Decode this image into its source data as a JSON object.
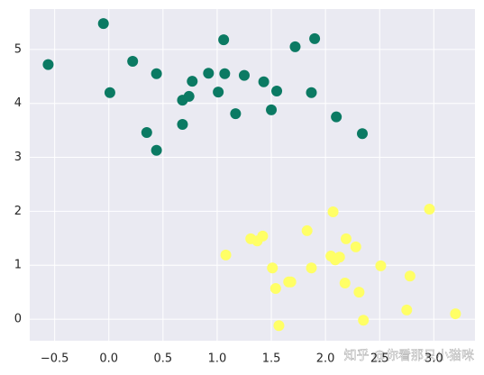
{
  "chart_data": {
    "type": "scatter",
    "xlim": [
      -0.73,
      3.38
    ],
    "ylim": [
      -0.4,
      5.75
    ],
    "xticks": [
      {
        "value": -0.5,
        "label": "−0.5"
      },
      {
        "value": 0,
        "label": "0.0"
      },
      0.5,
      {
        "value": 1,
        "label": "1.0"
      },
      1.5,
      {
        "value": 2,
        "label": "2.0"
      },
      2.5,
      {
        "value": 3,
        "label": "3.0"
      }
    ],
    "yticks": [
      0,
      1,
      2,
      3,
      4,
      5
    ],
    "grid": true,
    "background": "#eaeaf2",
    "series": [
      {
        "color": "#0b7a63",
        "x": [
          -0.56,
          -0.05,
          0.01,
          0.22,
          0.44,
          0.35,
          0.44,
          0.68,
          0.68,
          0.74,
          0.77,
          0.92,
          1.01,
          1.06,
          1.07,
          1.17,
          1.25,
          1.43,
          1.5,
          1.55,
          1.72,
          1.9,
          1.87,
          2.1,
          2.34
        ],
        "values": [
          4.72,
          5.48,
          4.2,
          4.78,
          4.55,
          3.46,
          3.13,
          3.61,
          4.06,
          4.13,
          4.41,
          4.56,
          4.21,
          5.18,
          4.55,
          3.81,
          4.52,
          4.4,
          3.88,
          4.23,
          5.05,
          5.2,
          4.2,
          3.75,
          3.44
        ]
      },
      {
        "color": "#ffff66",
        "x": [
          1.08,
          1.31,
          1.37,
          1.42,
          1.51,
          1.54,
          1.57,
          1.66,
          1.68,
          1.83,
          1.87,
          2.07,
          2.05,
          2.09,
          2.13,
          2.18,
          2.19,
          2.28,
          2.31,
          2.35,
          2.51,
          2.75,
          2.78,
          2.96,
          3.2
        ],
        "values": [
          1.19,
          1.49,
          1.45,
          1.54,
          0.95,
          0.57,
          -0.12,
          0.69,
          0.69,
          1.64,
          0.95,
          1.99,
          1.17,
          1.1,
          1.15,
          0.67,
          1.49,
          1.34,
          0.5,
          -0.02,
          0.99,
          0.17,
          0.8,
          2.04,
          0.1
        ]
      }
    ],
    "watermark": "知乎 @你看那只小猫咪"
  }
}
